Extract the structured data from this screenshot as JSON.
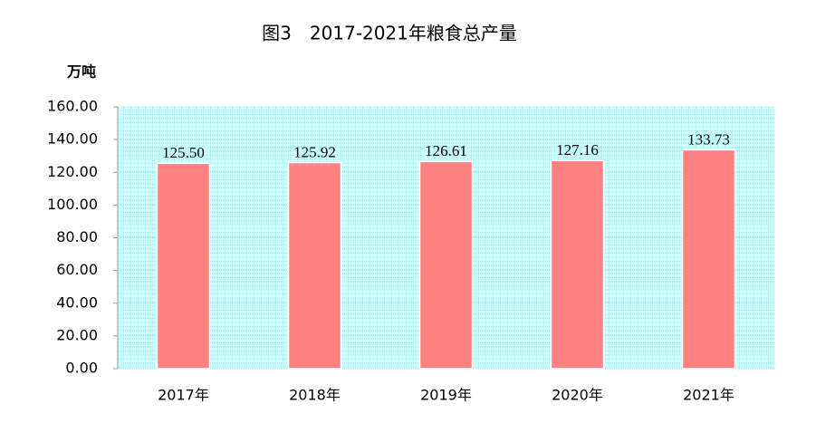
{
  "chart_data": {
    "type": "bar",
    "title": "图3　2017-2021年粮食总产量",
    "y_label": "万吨",
    "categories": [
      "2017年",
      "2018年",
      "2019年",
      "2020年",
      "2021年"
    ],
    "values": [
      125.5,
      125.92,
      126.61,
      127.16,
      133.73
    ],
    "value_labels": [
      "125.50",
      "125.92",
      "126.61",
      "127.16",
      "133.73"
    ],
    "color": "#ff8080",
    "ylim": [
      0,
      160
    ],
    "yticks": [
      {
        "value": 0,
        "label": "0.00"
      },
      {
        "value": 20,
        "label": "20.00"
      },
      {
        "value": 40,
        "label": "40.00"
      },
      {
        "value": 60,
        "label": "60.00"
      },
      {
        "value": 80,
        "label": "80.00"
      },
      {
        "value": 100,
        "label": "100.00"
      },
      {
        "value": 120,
        "label": "120.00"
      },
      {
        "value": 140,
        "label": "140.00"
      },
      {
        "value": 160,
        "label": "160.00"
      }
    ],
    "grid": true
  }
}
